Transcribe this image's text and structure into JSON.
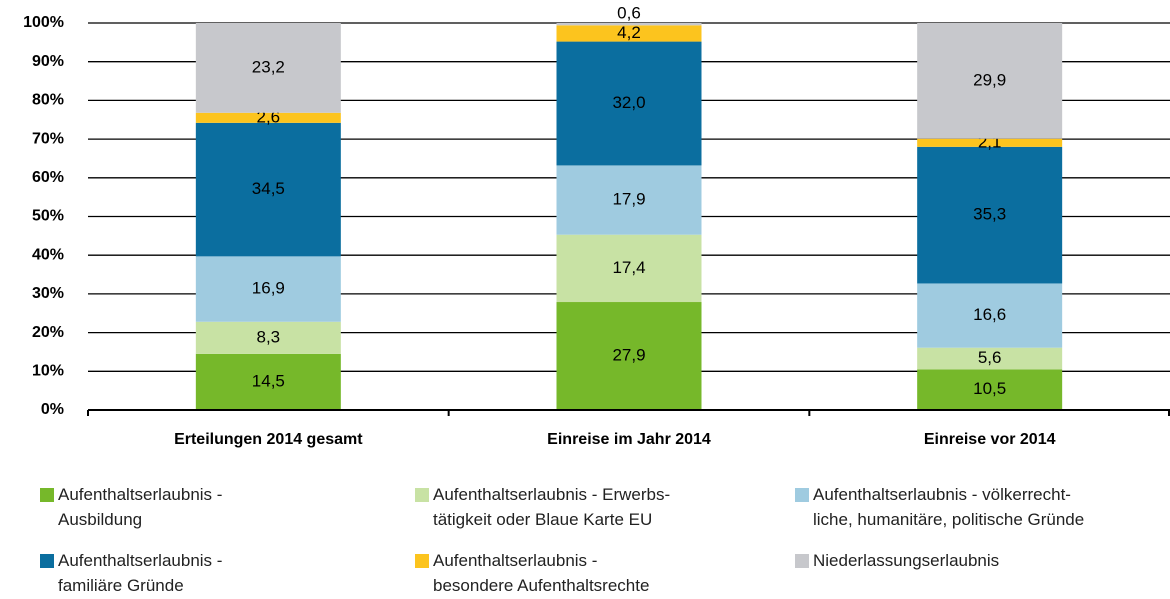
{
  "chart_data": {
    "type": "stacked_bar",
    "categories": [
      "Erteilungen 2014 gesamt",
      "Einreise im Jahr 2014",
      "Einreise vor 2014"
    ],
    "series": [
      {
        "name": "Aufenthaltserlaubnis -\nAusbildung",
        "color": "#76b82a",
        "label_color": "#ffffff",
        "values": [
          14.5,
          27.9,
          10.5
        ],
        "value_labels": [
          "14,5",
          "27,9",
          "10,5"
        ]
      },
      {
        "name": "Aufenthaltserlaubnis - Erwerbs-\ntätigkeit oder Blaue Karte EU",
        "color": "#c8e2a4",
        "label_color": "#000000",
        "values": [
          8.3,
          17.4,
          5.6
        ],
        "value_labels": [
          "8,3",
          "17,4",
          "5,6"
        ]
      },
      {
        "name": "Aufenthaltserlaubnis - völkerrecht-\nliche, humanitäre, politische Gründe",
        "color": "#9fcbe0",
        "label_color": "#000000",
        "values": [
          16.9,
          17.9,
          16.6
        ],
        "value_labels": [
          "16,9",
          "17,9",
          "16,6"
        ]
      },
      {
        "name": "Aufenthaltserlaubnis -\nfamiliäre Gründe",
        "color": "#0b6e9f",
        "label_color": "#ffffff",
        "values": [
          34.5,
          32.0,
          35.3
        ],
        "value_labels": [
          "34,5",
          "32,0",
          "35,3"
        ]
      },
      {
        "name": "Aufenthaltserlaubnis -\nbesondere Aufenthaltsrechte",
        "color": "#fcc41e",
        "label_color": "#000000",
        "values": [
          2.6,
          4.2,
          2.1
        ],
        "value_labels": [
          "2,6",
          "4,2",
          "2,1"
        ]
      },
      {
        "name": "Niederlassungserlaubnis",
        "color": "#c7c8cc",
        "label_color": "#000000",
        "values": [
          23.2,
          0.6,
          29.9
        ],
        "value_labels": [
          "23,2",
          "0,6",
          "29,9"
        ]
      }
    ],
    "ylim": [
      0,
      100
    ],
    "yticks": [
      {
        "value": 0,
        "label": "0%"
      },
      {
        "value": 10,
        "label": "10%"
      },
      {
        "value": 20,
        "label": "20%"
      },
      {
        "value": 30,
        "label": "30%"
      },
      {
        "value": 40,
        "label": "40%"
      },
      {
        "value": 50,
        "label": "50%"
      },
      {
        "value": 60,
        "label": "60%"
      },
      {
        "value": 70,
        "label": "70%"
      },
      {
        "value": 80,
        "label": "80%"
      },
      {
        "value": 90,
        "label": "90%"
      },
      {
        "value": 100,
        "label": "100%"
      }
    ],
    "grid": true
  }
}
